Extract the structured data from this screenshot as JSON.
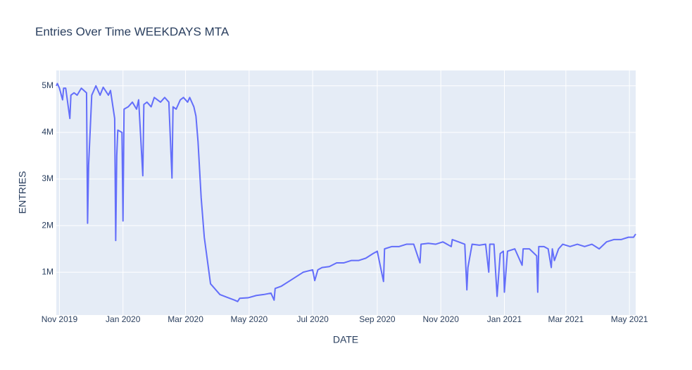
{
  "chart_data": {
    "type": "line",
    "title": "Entries Over Time WEEKDAYS MTA",
    "x_label": "DATE",
    "y_label": "ENTRIES",
    "x": [
      "2019-10-29",
      "2019-10-30",
      "2019-10-31",
      "2019-11-01",
      "2019-11-04",
      "2019-11-05",
      "2019-11-07",
      "2019-11-11",
      "2019-11-12",
      "2019-11-15",
      "2019-11-18",
      "2019-11-22",
      "2019-11-27",
      "2019-11-28",
      "2019-11-29",
      "2019-12-02",
      "2019-12-06",
      "2019-12-10",
      "2019-12-13",
      "2019-12-18",
      "2019-12-20",
      "2019-12-24",
      "2019-12-25",
      "2019-12-26",
      "2019-12-27",
      "2019-12-31",
      "2020-01-01",
      "2020-01-02",
      "2020-01-06",
      "2020-01-10",
      "2020-01-14",
      "2020-01-16",
      "2020-01-20",
      "2020-01-21",
      "2020-01-24",
      "2020-01-28",
      "2020-01-31",
      "2020-02-06",
      "2020-02-10",
      "2020-02-14",
      "2020-02-17",
      "2020-02-18",
      "2020-02-21",
      "2020-02-25",
      "2020-02-28",
      "2020-03-03",
      "2020-03-05",
      "2020-03-09",
      "2020-03-11",
      "2020-03-13",
      "2020-03-16",
      "2020-03-19",
      "2020-03-25",
      "2020-03-27",
      "2020-04-03",
      "2020-04-10",
      "2020-04-17",
      "2020-04-20",
      "2020-04-22",
      "2020-04-30",
      "2020-05-08",
      "2020-05-15",
      "2020-05-22",
      "2020-05-25",
      "2020-05-26",
      "2020-06-01",
      "2020-06-08",
      "2020-06-15",
      "2020-06-22",
      "2020-07-01",
      "2020-07-03",
      "2020-07-06",
      "2020-07-10",
      "2020-07-17",
      "2020-07-24",
      "2020-07-31",
      "2020-08-07",
      "2020-08-14",
      "2020-08-21",
      "2020-08-28",
      "2020-09-01",
      "2020-09-07",
      "2020-09-08",
      "2020-09-15",
      "2020-09-22",
      "2020-09-29",
      "2020-10-06",
      "2020-10-12",
      "2020-10-13",
      "2020-10-20",
      "2020-10-27",
      "2020-11-03",
      "2020-11-11",
      "2020-11-12",
      "2020-11-18",
      "2020-11-24",
      "2020-11-26",
      "2020-11-27",
      "2020-12-01",
      "2020-12-08",
      "2020-12-14",
      "2020-12-17",
      "2020-12-18",
      "2020-12-22",
      "2020-12-25",
      "2020-12-28",
      "2020-12-31",
      "2021-01-01",
      "2021-01-04",
      "2021-01-11",
      "2021-01-18",
      "2021-01-19",
      "2021-01-25",
      "2021-02-01",
      "2021-02-02",
      "2021-02-03",
      "2021-02-08",
      "2021-02-12",
      "2021-02-15",
      "2021-02-16",
      "2021-02-18",
      "2021-02-22",
      "2021-02-26",
      "2021-03-05",
      "2021-03-12",
      "2021-03-19",
      "2021-03-26",
      "2021-04-02",
      "2021-04-09",
      "2021-04-16",
      "2021-04-23",
      "2021-04-30",
      "2021-05-05",
      "2021-05-07"
    ],
    "series": [
      {
        "name": "ENTRIES",
        "color": "#636efa",
        "values": [
          5000000,
          5050000,
          5000000,
          4950000,
          4700000,
          4950000,
          4950000,
          4300000,
          4800000,
          4850000,
          4800000,
          4950000,
          4850000,
          2050000,
          3300000,
          4800000,
          5000000,
          4800000,
          4970000,
          4800000,
          4900000,
          4300000,
          1680000,
          3500000,
          4050000,
          4000000,
          2100000,
          4500000,
          4550000,
          4650000,
          4500000,
          4700000,
          3070000,
          4600000,
          4650000,
          4550000,
          4750000,
          4650000,
          4750000,
          4650000,
          3020000,
          4550000,
          4500000,
          4700000,
          4750000,
          4650000,
          4750000,
          4550000,
          4350000,
          3800000,
          2600000,
          1750000,
          750000,
          700000,
          520000,
          460000,
          400000,
          370000,
          440000,
          450000,
          500000,
          520000,
          550000,
          400000,
          650000,
          700000,
          800000,
          900000,
          1000000,
          1050000,
          820000,
          1050000,
          1100000,
          1120000,
          1200000,
          1200000,
          1250000,
          1250000,
          1300000,
          1400000,
          1450000,
          800000,
          1500000,
          1550000,
          1550000,
          1600000,
          1600000,
          1200000,
          1600000,
          1620000,
          1600000,
          1650000,
          1550000,
          1700000,
          1650000,
          1600000,
          620000,
          1100000,
          1600000,
          1580000,
          1600000,
          1000000,
          1600000,
          1600000,
          480000,
          1400000,
          1450000,
          570000,
          1450000,
          1500000,
          1150000,
          1500000,
          1500000,
          1350000,
          570000,
          1550000,
          1550000,
          1500000,
          1100000,
          1500000,
          1250000,
          1500000,
          1600000,
          1550000,
          1600000,
          1550000,
          1600000,
          1500000,
          1650000,
          1700000,
          1700000,
          1750000,
          1750000,
          1820000
        ]
      }
    ],
    "xlim": [
      "2019-10-29",
      "2021-05-07"
    ],
    "xticks": [
      {
        "value": "2019-11-01",
        "label": "Nov 2019"
      },
      {
        "value": "2020-01-01",
        "label": "Jan 2020"
      },
      {
        "value": "2020-03-01",
        "label": "Mar 2020"
      },
      {
        "value": "2020-05-01",
        "label": "May 2020"
      },
      {
        "value": "2020-07-01",
        "label": "Jul 2020"
      },
      {
        "value": "2020-09-01",
        "label": "Sep 2020"
      },
      {
        "value": "2020-11-01",
        "label": "Nov 2020"
      },
      {
        "value": "2021-01-01",
        "label": "Jan 2021"
      },
      {
        "value": "2021-03-01",
        "label": "Mar 2021"
      },
      {
        "value": "2021-05-01",
        "label": "May 2021"
      }
    ],
    "ylim": [
      80000,
      5330000
    ],
    "yticks": [
      {
        "value": 1000000,
        "label": "1M"
      },
      {
        "value": 2000000,
        "label": "2M"
      },
      {
        "value": 3000000,
        "label": "3M"
      },
      {
        "value": 4000000,
        "label": "4M"
      },
      {
        "value": 5000000,
        "label": "5M"
      }
    ],
    "grid": true,
    "background": "#e5ecf6"
  }
}
